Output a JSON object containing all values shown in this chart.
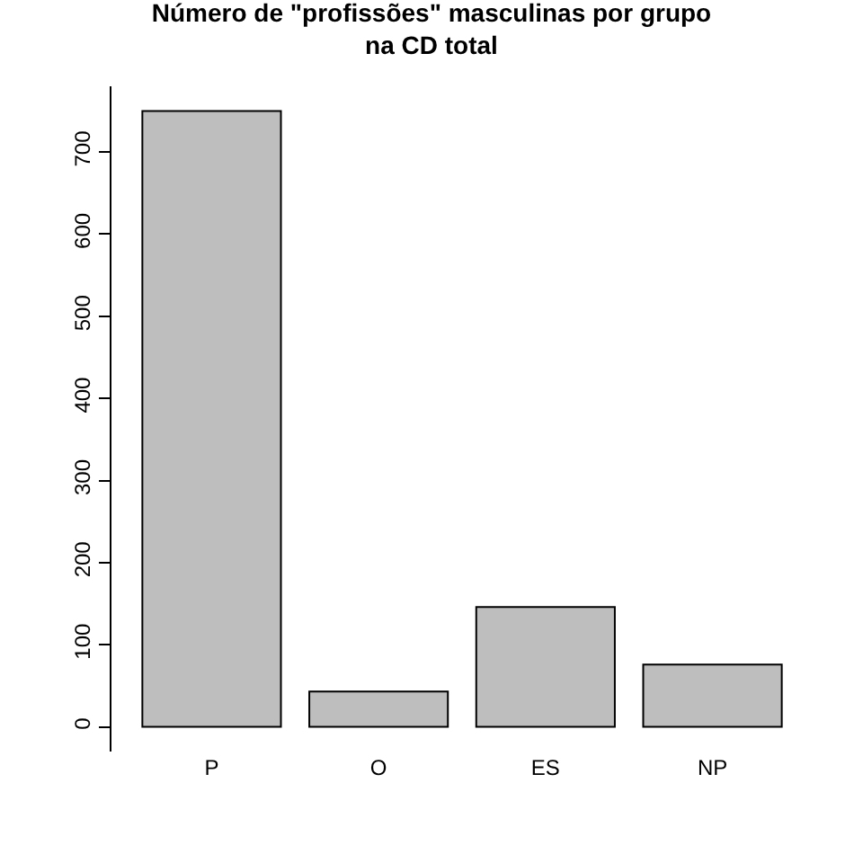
{
  "chart_data": {
    "type": "bar",
    "title": "Número de \"profissões\" masculinas por grupo\nna CD total",
    "categories": [
      "P",
      "O",
      "ES",
      "NP"
    ],
    "values": [
      750,
      43,
      146,
      76
    ],
    "color": "#bebebe",
    "ylim": [
      -30,
      780
    ],
    "yticks": [
      0,
      100,
      200,
      300,
      400,
      500,
      600,
      700
    ],
    "grid": false
  }
}
